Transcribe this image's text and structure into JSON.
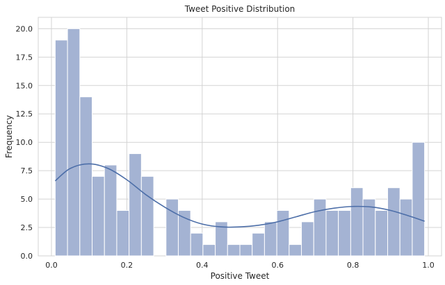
{
  "chart_data": {
    "type": "bar",
    "title": "Tweet Positive Distribution",
    "xlabel": "Positive Tweet",
    "ylabel": "Frequency",
    "xlim": [
      -0.035,
      1.035
    ],
    "ylim": [
      0,
      21
    ],
    "grid": true,
    "bar_color": "#a4b3d3",
    "bar_edge_color": "#ffffff",
    "kde_color": "#4c6ea8",
    "grid_color": "#d3d3d3",
    "background_color": "#ffffff",
    "x_ticks": [
      {
        "value": 0.0,
        "label": "0.0"
      },
      {
        "value": 0.2,
        "label": "0.2"
      },
      {
        "value": 0.4,
        "label": "0.4"
      },
      {
        "value": 0.6,
        "label": "0.6"
      },
      {
        "value": 0.8,
        "label": "0.8"
      },
      {
        "value": 1.0,
        "label": "1.0"
      }
    ],
    "y_ticks": [
      {
        "value": 0.0,
        "label": "0.0"
      },
      {
        "value": 2.5,
        "label": "2.5"
      },
      {
        "value": 5.0,
        "label": "5.0"
      },
      {
        "value": 7.5,
        "label": "7.5"
      },
      {
        "value": 10.0,
        "label": "10.0"
      },
      {
        "value": 12.5,
        "label": "12.5"
      },
      {
        "value": 15.0,
        "label": "15.0"
      },
      {
        "value": 17.5,
        "label": "17.5"
      },
      {
        "value": 20.0,
        "label": "20.0"
      }
    ],
    "bin_range": [
      0.01,
      0.99
    ],
    "bin_counts": [
      19,
      20,
      14,
      7,
      8,
      4,
      9,
      7,
      0,
      5,
      4,
      2,
      1,
      3,
      1,
      1,
      2,
      3,
      4,
      1,
      3,
      5,
      4,
      4,
      6,
      5,
      4,
      6,
      5,
      10
    ],
    "kde": {
      "x": [
        0.01,
        0.05,
        0.1,
        0.15,
        0.2,
        0.25,
        0.3,
        0.35,
        0.4,
        0.45,
        0.5,
        0.55,
        0.6,
        0.65,
        0.7,
        0.75,
        0.8,
        0.85,
        0.9,
        0.95,
        0.99
      ],
      "y": [
        6.6,
        7.7,
        8.1,
        7.7,
        6.7,
        5.4,
        4.3,
        3.4,
        2.8,
        2.55,
        2.55,
        2.7,
        3.0,
        3.45,
        3.9,
        4.2,
        4.35,
        4.3,
        4.0,
        3.5,
        3.05
      ]
    }
  }
}
